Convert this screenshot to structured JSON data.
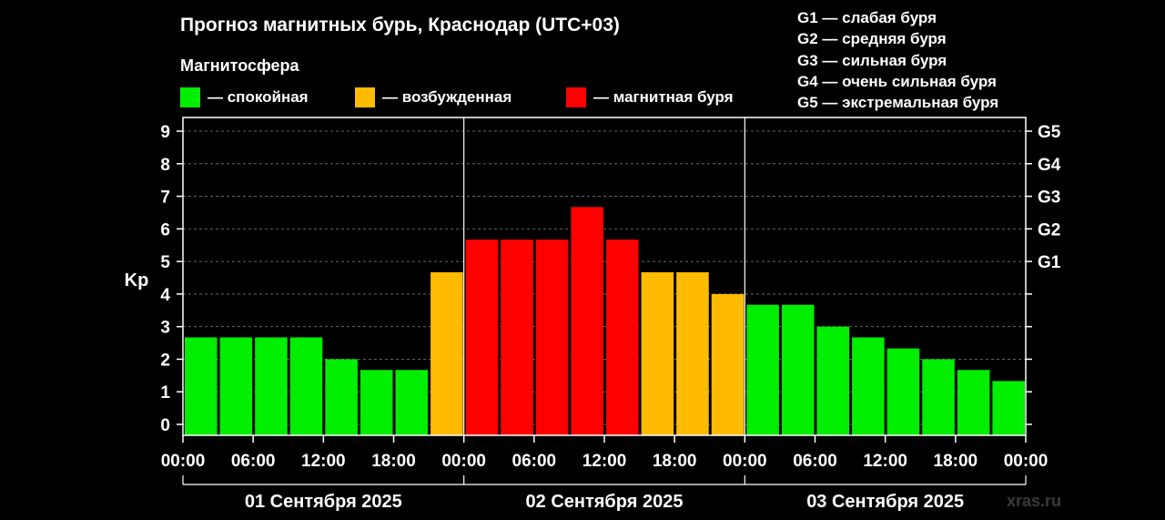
{
  "chart_data": {
    "type": "bar",
    "title": "Прогноз магнитных бурь, Краснодар (UTC+03)",
    "subtitle": "Магнитосфера",
    "ylabel": "Kp",
    "ylim": [
      0,
      9
    ],
    "yticks": [
      "0",
      "1",
      "2",
      "3",
      "4",
      "5",
      "6",
      "7",
      "8",
      "9"
    ],
    "gscale": [
      {
        "label": "G1",
        "kp": 5
      },
      {
        "label": "G2",
        "kp": 6
      },
      {
        "label": "G3",
        "kp": 7
      },
      {
        "label": "G4",
        "kp": 8
      },
      {
        "label": "G5",
        "kp": 9
      }
    ],
    "legend": [
      {
        "label": "— спокойная",
        "color": "#00ee00"
      },
      {
        "label": "— возбужденная",
        "color": "#ffbb00"
      },
      {
        "label": "— магнитная буря",
        "color": "#ff0000"
      }
    ],
    "storm_legend": [
      "G1 — слабая буря",
      "G2 — средняя буря",
      "G3 — сильная буря",
      "G4 — очень сильная буря",
      "G5 — экстремальная буря"
    ],
    "xticks": [
      "00:00",
      "06:00",
      "12:00",
      "18:00",
      "00:00",
      "06:00",
      "12:00",
      "18:00",
      "00:00",
      "06:00",
      "12:00",
      "18:00",
      "00:00"
    ],
    "days": [
      "01 Сентября 2025",
      "02 Сентября 2025",
      "03 Сентября 2025"
    ],
    "values": [
      2.67,
      2.67,
      2.67,
      2.67,
      2.0,
      1.67,
      1.67,
      4.67,
      5.67,
      5.67,
      5.67,
      6.67,
      5.67,
      4.67,
      4.67,
      4.0,
      3.67,
      3.67,
      3.0,
      2.67,
      2.33,
      2.0,
      1.67,
      1.33
    ],
    "levels": [
      "quiet",
      "quiet",
      "quiet",
      "quiet",
      "quiet",
      "quiet",
      "quiet",
      "active",
      "storm",
      "storm",
      "storm",
      "storm",
      "storm",
      "active",
      "active",
      "active",
      "quiet",
      "quiet",
      "quiet",
      "quiet",
      "quiet",
      "quiet",
      "quiet",
      "quiet"
    ],
    "level_colors": {
      "quiet": "#00ee00",
      "active": "#ffbb00",
      "storm": "#ff0000"
    }
  },
  "watermark": "xras.ru"
}
